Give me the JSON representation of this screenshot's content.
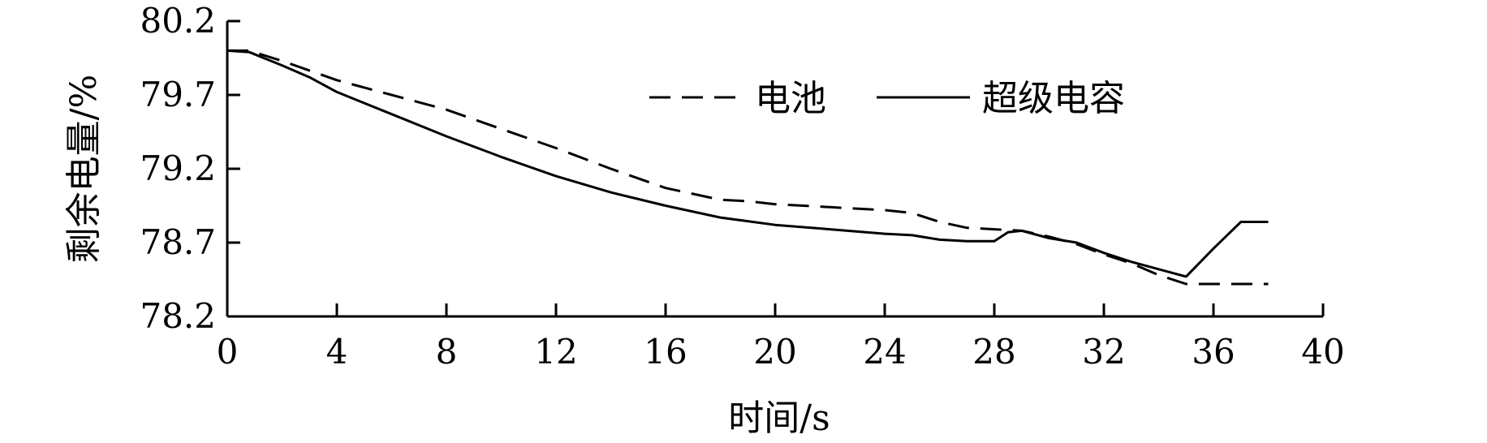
{
  "chart_data": {
    "type": "line",
    "title": "",
    "xlabel": "时间/s",
    "ylabel": "剩余电量/%",
    "xlim": [
      0,
      40
    ],
    "ylim": [
      78.2,
      80.2
    ],
    "xticks": [
      0,
      4,
      8,
      12,
      16,
      20,
      24,
      28,
      32,
      36,
      40
    ],
    "yticks": [
      78.2,
      78.7,
      79.2,
      79.7,
      80.2
    ],
    "x_tick_labels": [
      "0",
      "4",
      "8",
      "12",
      "16",
      "20",
      "24",
      "28",
      "32",
      "36",
      "40"
    ],
    "y_tick_labels": [
      "78.2",
      "78.7",
      "79.2",
      "79.7",
      "80.2"
    ],
    "grid": false,
    "legend_position": "top-right",
    "series": [
      {
        "name": "电池",
        "style": "dashed",
        "color": "#000000",
        "x": [
          0,
          0.8,
          2,
          4,
          6,
          8,
          10,
          12,
          14,
          16,
          18,
          19,
          20,
          22,
          24,
          25,
          26,
          27,
          28,
          29,
          30,
          31,
          32,
          33,
          34,
          35,
          36,
          37,
          38
        ],
        "y": [
          80.0,
          80.0,
          79.93,
          79.8,
          79.7,
          79.6,
          79.47,
          79.34,
          79.2,
          79.07,
          78.99,
          78.98,
          78.96,
          78.94,
          78.92,
          78.9,
          78.84,
          78.8,
          78.79,
          78.78,
          78.74,
          78.69,
          78.62,
          78.56,
          78.48,
          78.42,
          78.42,
          78.42,
          78.42
        ]
      },
      {
        "name": "超级电容",
        "style": "solid",
        "color": "#000000",
        "x": [
          0,
          0.8,
          2,
          3,
          4,
          6,
          8,
          10,
          12,
          14,
          16,
          18,
          20,
          22,
          24,
          25,
          26,
          27,
          28,
          28.5,
          29,
          30,
          31,
          32,
          33,
          34,
          35,
          36,
          37,
          38
        ],
        "y": [
          80.0,
          79.99,
          79.9,
          79.82,
          79.72,
          79.57,
          79.42,
          79.28,
          79.15,
          79.04,
          78.95,
          78.87,
          78.82,
          78.79,
          78.76,
          78.75,
          78.72,
          78.71,
          78.71,
          78.77,
          78.78,
          78.73,
          78.7,
          78.63,
          78.57,
          78.52,
          78.47,
          78.66,
          78.84,
          78.84
        ]
      }
    ]
  }
}
